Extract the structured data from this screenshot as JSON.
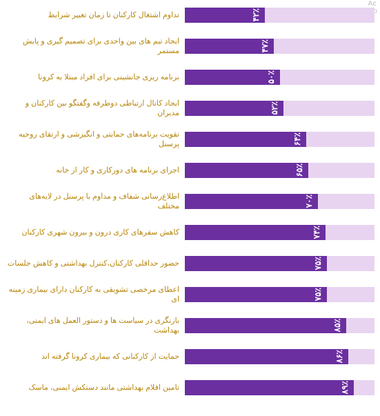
{
  "chart": {
    "type": "bar",
    "bar_color": "#6b2fa0",
    "track_color": "#e8d4f0",
    "label_color": "#b8860b",
    "value_color": "#ffffff",
    "label_fontsize": 11,
    "value_fontsize": 12,
    "max_value": 100,
    "items": [
      {
        "label": "تداوم اشتغال کارکنان تا زمان تغییر شرایط",
        "value": 42,
        "value_text": "۴۲٪"
      },
      {
        "label": "ایجاد تیم های بین واحدی برای تصمیم گیری و پایش مستمر",
        "value": 47,
        "value_text": "۴۷٪"
      },
      {
        "label": "برنامه ریزی جانشینی برای افراد مبتلا به کرونا",
        "value": 50,
        "value_text": "۵۰٪"
      },
      {
        "label": "ایجاد کانال ارتباطی دوطرفه وگفتگو بین کارکنان و مدیران",
        "value": 52,
        "value_text": "۵۲٪"
      },
      {
        "label": "تقویت برنامه‌های حمایتی و  انگیزشی و ارتقای روحیه پرسنل",
        "value": 64,
        "value_text": "۶۴٪"
      },
      {
        "label": "اجرای برنامه های دورکاری و کار از خانه",
        "value": 65,
        "value_text": "۶۵٪"
      },
      {
        "label": "اطلاع‌رسانی شفاف و مداوم با پرسنل در لایه‌های مختلف",
        "value": 70,
        "value_text": "۷۰٪"
      },
      {
        "label": "کاهش سفرهای کاری درون و بیرون شهری کارکنان",
        "value": 74,
        "value_text": "۷۴٪"
      },
      {
        "label": "حضور حداقلی کارکنان،کنترل بهداشتی و کاهش جلسات",
        "value": 75,
        "value_text": "۷۵٪"
      },
      {
        "label": "اعطای مرخصی تشویقی به کارکنان دارای بیماری زمینه ای",
        "value": 75,
        "value_text": "۷۵٪"
      },
      {
        "label": "بازنگری در سیاست ها و دستور العمل های ایمنی، بهداشت",
        "value": 85,
        "value_text": "۸۵٪"
      },
      {
        "label": "حمایت از کارکنانی که بیماری کرونا گرفته اند",
        "value": 86,
        "value_text": "۸۶٪"
      },
      {
        "label": "تامین اقلام بهداشتی مانند دستکش ایمنی، ماسک",
        "value": 89,
        "value_text": "۸۹٪"
      }
    ]
  },
  "corner": {
    "line1": "Ac",
    "line2": "Go"
  }
}
